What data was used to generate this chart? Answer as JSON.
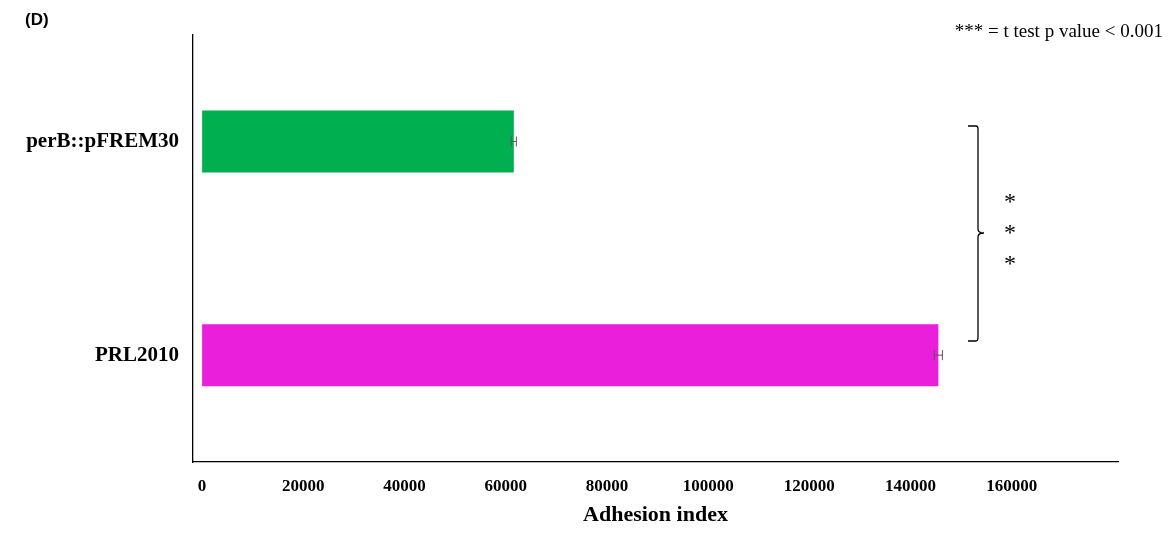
{
  "chart_data": {
    "type": "bar",
    "orientation": "horizontal",
    "title": "(D)",
    "xlabel": "Adhesion index",
    "categories": [
      "perB::pFREM30",
      "PRL2010"
    ],
    "values": [
      61600,
      145500
    ],
    "colors": [
      "#00b050",
      "#e91fdb"
    ],
    "errors": [
      500,
      800
    ],
    "xlim": [
      -1800,
      181000
    ],
    "xticks": [
      0,
      20000,
      40000,
      60000,
      80000,
      100000,
      120000,
      140000,
      160000
    ],
    "grid": false,
    "legend": false,
    "annotations": [
      "*** = t test p value < 0.001",
      "***"
    ]
  }
}
